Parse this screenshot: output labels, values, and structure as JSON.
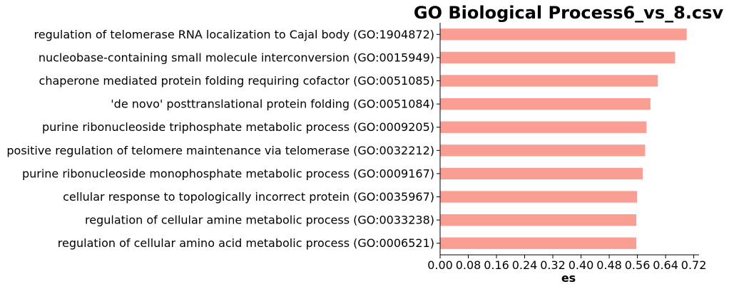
{
  "chart_data": {
    "type": "bar",
    "orientation": "horizontal",
    "title": "GO Biological Process6_vs_8.csv",
    "xlabel": "es",
    "ylabel": "",
    "xlim": [
      0.0,
      0.735
    ],
    "xticks": [
      "0.00",
      "0.08",
      "0.16",
      "0.24",
      "0.32",
      "0.40",
      "0.48",
      "0.56",
      "0.64",
      "0.72"
    ],
    "grid": false,
    "legend": "none",
    "bar_color": "#fa9d93",
    "categories": [
      "regulation of telomerase RNA localization to Cajal body (GO:1904872)",
      "nucleobase-containing small molecule interconversion (GO:0015949)",
      "chaperone mediated protein folding requiring cofactor (GO:0051085)",
      "'de novo' posttranslational protein folding (GO:0051084)",
      "purine ribonucleoside triphosphate metabolic process (GO:0009205)",
      "positive regulation of telomere maintenance via telomerase (GO:0032212)",
      "purine ribonucleoside monophosphate metabolic process (GO:0009167)",
      "cellular response to topologically incorrect protein (GO:0035967)",
      "regulation of cellular amine metabolic process (GO:0033238)",
      "regulation of cellular amino acid metabolic process (GO:0006521)"
    ],
    "values": [
      0.7,
      0.667,
      0.618,
      0.597,
      0.586,
      0.582,
      0.575,
      0.559,
      0.557,
      0.557
    ]
  }
}
